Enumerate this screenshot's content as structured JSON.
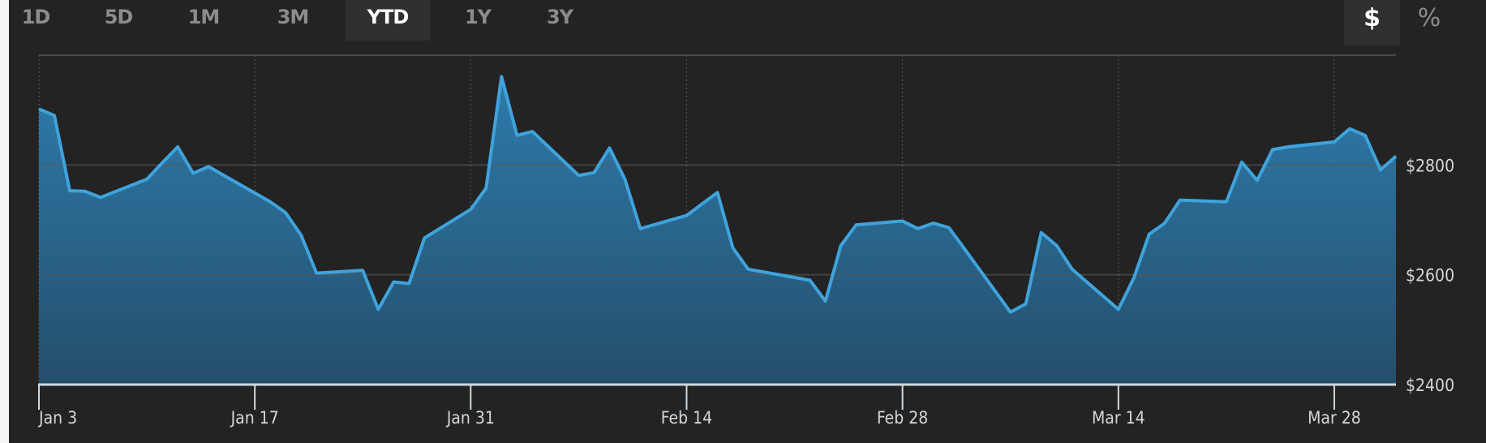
{
  "range_tabs": [
    {
      "label": "1D",
      "active": false
    },
    {
      "label": "5D",
      "active": false
    },
    {
      "label": "1M",
      "active": false
    },
    {
      "label": "3M",
      "active": false
    },
    {
      "label": "YTD",
      "active": true
    },
    {
      "label": "1Y",
      "active": false
    },
    {
      "label": "3Y",
      "active": false
    }
  ],
  "unit_toggle": [
    {
      "label": "$",
      "active": true
    },
    {
      "label": "%",
      "active": false
    }
  ],
  "colors": {
    "line": "#3fa3dc",
    "fill_top": "#2e80b3",
    "fill_bottom": "#25506e",
    "background": "#232323"
  },
  "chart_data": {
    "type": "area",
    "title": "",
    "xlabel": "",
    "ylabel": "",
    "ylim": [
      2400,
      3000
    ],
    "y_ticks": [
      {
        "value": 2400,
        "label": "$2400"
      },
      {
        "value": 2600,
        "label": "$2600"
      },
      {
        "value": 2800,
        "label": "$2800"
      }
    ],
    "x_ticks": [
      {
        "date": "2022-01-03",
        "label": "Jan 3"
      },
      {
        "date": "2022-01-17",
        "label": "Jan 17"
      },
      {
        "date": "2022-01-31",
        "label": "Jan 31"
      },
      {
        "date": "2022-02-14",
        "label": "Feb 14"
      },
      {
        "date": "2022-02-28",
        "label": "Feb 28"
      },
      {
        "date": "2022-03-14",
        "label": "Mar 14"
      },
      {
        "date": "2022-03-28",
        "label": "Mar 28"
      }
    ],
    "xlim": [
      "2022-01-03",
      "2022-04-01"
    ],
    "grid": true,
    "points": [
      [
        "2022-01-03",
        2902
      ],
      [
        "2022-01-04",
        2890
      ],
      [
        "2022-01-05",
        2753
      ],
      [
        "2022-01-06",
        2752
      ],
      [
        "2022-01-07",
        2741
      ],
      [
        "2022-01-10",
        2774
      ],
      [
        "2022-01-11",
        2804
      ],
      [
        "2022-01-12",
        2833
      ],
      [
        "2022-01-13",
        2785
      ],
      [
        "2022-01-14",
        2797
      ],
      [
        "2022-01-18",
        2733
      ],
      [
        "2022-01-19",
        2713
      ],
      [
        "2022-01-20",
        2672
      ],
      [
        "2022-01-21",
        2603
      ],
      [
        "2022-01-24",
        2608
      ],
      [
        "2022-01-25",
        2537
      ],
      [
        "2022-01-26",
        2587
      ],
      [
        "2022-01-27",
        2584
      ],
      [
        "2022-01-28",
        2667
      ],
      [
        "2022-01-31",
        2719
      ],
      [
        "2022-02-01",
        2758
      ],
      [
        "2022-02-02",
        2961
      ],
      [
        "2022-02-03",
        2854
      ],
      [
        "2022-02-04",
        2861
      ],
      [
        "2022-02-07",
        2781
      ],
      [
        "2022-02-08",
        2786
      ],
      [
        "2022-02-09",
        2831
      ],
      [
        "2022-02-10",
        2774
      ],
      [
        "2022-02-11",
        2684
      ],
      [
        "2022-02-14",
        2708
      ],
      [
        "2022-02-15",
        2729
      ],
      [
        "2022-02-16",
        2750
      ],
      [
        "2022-02-17",
        2649
      ],
      [
        "2022-02-18",
        2610
      ],
      [
        "2022-02-22",
        2590
      ],
      [
        "2022-02-23",
        2552
      ],
      [
        "2022-02-24",
        2653
      ],
      [
        "2022-02-25",
        2691
      ],
      [
        "2022-02-28",
        2698
      ],
      [
        "2022-03-01",
        2684
      ],
      [
        "2022-03-02",
        2694
      ],
      [
        "2022-03-03",
        2686
      ],
      [
        "2022-03-04",
        2648
      ],
      [
        "2022-03-07",
        2532
      ],
      [
        "2022-03-08",
        2547
      ],
      [
        "2022-03-09",
        2677
      ],
      [
        "2022-03-10",
        2653
      ],
      [
        "2022-03-11",
        2610
      ],
      [
        "2022-03-14",
        2537
      ],
      [
        "2022-03-15",
        2594
      ],
      [
        "2022-03-16",
        2674
      ],
      [
        "2022-03-17",
        2694
      ],
      [
        "2022-03-18",
        2736
      ],
      [
        "2022-03-21",
        2733
      ],
      [
        "2022-03-22",
        2805
      ],
      [
        "2022-03-23",
        2772
      ],
      [
        "2022-03-24",
        2828
      ],
      [
        "2022-03-25",
        2833
      ],
      [
        "2022-03-28",
        2842
      ],
      [
        "2022-03-29",
        2866
      ],
      [
        "2022-03-30",
        2854
      ],
      [
        "2022-03-31",
        2791
      ],
      [
        "2022-04-01",
        2816
      ]
    ]
  }
}
